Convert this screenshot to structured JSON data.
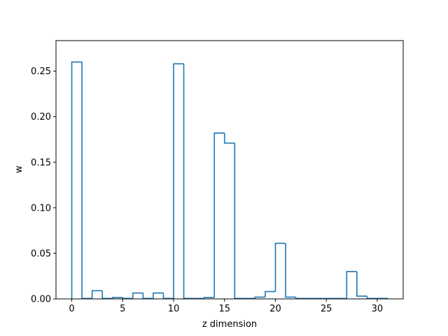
{
  "chart_data": {
    "type": "bar",
    "style": "step-histogram",
    "title": "",
    "xlabel": "z dimension",
    "ylabel": "w",
    "xlim": [
      -1.55,
      32.55
    ],
    "ylim": [
      0,
      0.2835
    ],
    "xticks": [
      0,
      5,
      10,
      15,
      20,
      25,
      30
    ],
    "xtick_labels": [
      "0",
      "5",
      "10",
      "15",
      "20",
      "25",
      "30"
    ],
    "yticks": [
      0.0,
      0.05,
      0.1,
      0.15,
      0.2,
      0.25
    ],
    "ytick_labels": [
      "0.00",
      "0.05",
      "0.10",
      "0.15",
      "0.20",
      "0.25"
    ],
    "grid": false,
    "legend": "none",
    "color": "#1f77b4",
    "categories": [
      0,
      1,
      2,
      3,
      4,
      5,
      6,
      7,
      8,
      9,
      10,
      11,
      12,
      13,
      14,
      15,
      16,
      17,
      18,
      19,
      20,
      21,
      22,
      23,
      24,
      25,
      26,
      27,
      28,
      29,
      30
    ],
    "values": [
      0.26,
      0.0005,
      0.009,
      0.0005,
      0.0015,
      0.0005,
      0.0065,
      0.0005,
      0.0065,
      0.0005,
      0.258,
      0.0005,
      0.0005,
      0.0015,
      0.182,
      0.171,
      0.0005,
      0.0005,
      0.002,
      0.008,
      0.061,
      0.002,
      0.0005,
      0.0005,
      0.0005,
      0.0005,
      0.0005,
      0.03,
      0.003,
      0.0005,
      0.0005
    ]
  }
}
